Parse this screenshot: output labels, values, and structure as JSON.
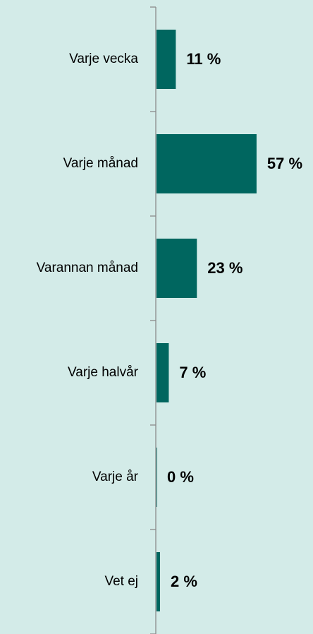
{
  "chart_data": {
    "type": "bar",
    "orientation": "horizontal",
    "categories": [
      "Varje vecka",
      "Varje månad",
      "Varannan månad",
      "Varje halvår",
      "Varje år",
      "Vet ej"
    ],
    "values": [
      11,
      57,
      23,
      7,
      0,
      2
    ],
    "value_labels": [
      "11 %",
      "57 %",
      "23 %",
      "7 %",
      "0 %",
      "2 %"
    ],
    "color": "#00665f"
  }
}
